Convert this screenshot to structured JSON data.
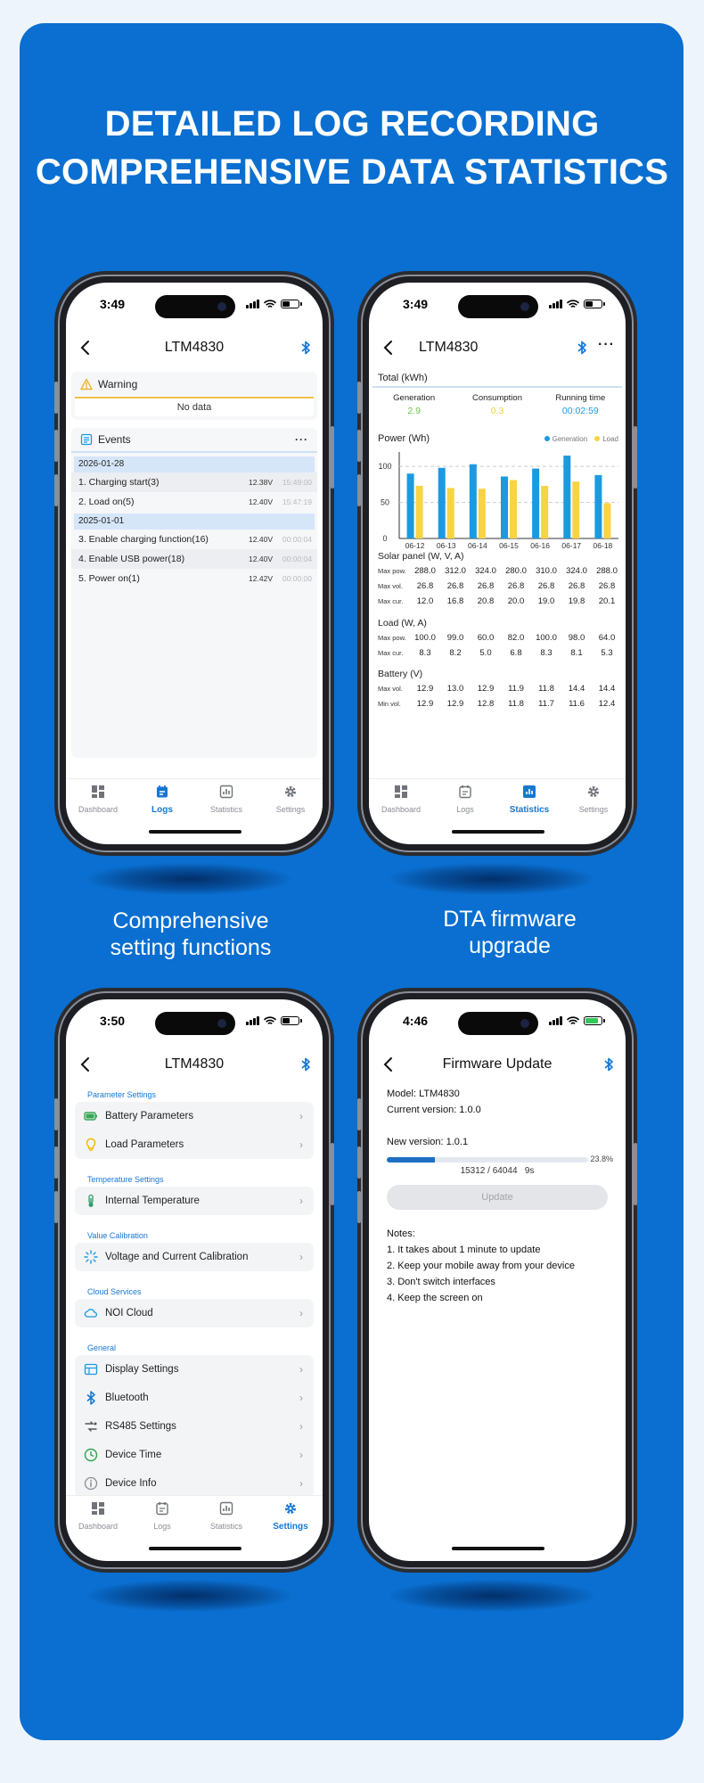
{
  "headline": {
    "line1": "DETAILED LOG RECORDING",
    "line2": "COMPREHENSIVE DATA STATISTICS"
  },
  "captions": {
    "settings": "Comprehensive\nsetting functions",
    "firmware": "DTA firmware\nupgrade"
  },
  "colors": {
    "background": "#0a6fd0",
    "accent": "#1677d3",
    "generation": "#1b9ae0",
    "load": "#f8d342"
  },
  "tabs": [
    "Dashboard",
    "Logs",
    "Statistics",
    "Settings"
  ],
  "logs": {
    "time": "3:49",
    "title": "LTM4830",
    "warning_label": "Warning",
    "no_data": "No data",
    "events_label": "Events",
    "groups": [
      {
        "date": "2026-01-28",
        "events": [
          {
            "name": "1. Charging start(3)",
            "voltage": "12.38V",
            "time": "15:49:00"
          },
          {
            "name": "2. Load on(5)",
            "voltage": "12.40V",
            "time": "15:47:19"
          }
        ]
      },
      {
        "date": "2025-01-01",
        "events": [
          {
            "name": "3. Enable charging function(16)",
            "voltage": "12.40V",
            "time": "00:00:04"
          },
          {
            "name": "4. Enable USB power(18)",
            "voltage": "12.40V",
            "time": "00:00:04"
          },
          {
            "name": "5. Power on(1)",
            "voltage": "12.42V",
            "time": "00:00:00"
          }
        ]
      }
    ]
  },
  "stats": {
    "time": "3:49",
    "title": "LTM4830",
    "more": "···",
    "total_label": "Total (kWh)",
    "generation_label": "Generation",
    "generation_value": "2.9",
    "consumption_label": "Consumption",
    "consumption_value": "0.3",
    "running_label": "Running time",
    "running_value": "00:02:59",
    "power_label": "Power (Wh)",
    "solar": {
      "title": "Solar panel (W, V, A)",
      "rows": [
        {
          "label": "Max pow.",
          "values": [
            "288.0",
            "312.0",
            "324.0",
            "280.0",
            "310.0",
            "324.0",
            "288.0"
          ]
        },
        {
          "label": "Max vol.",
          "values": [
            "26.8",
            "26.8",
            "26.8",
            "26.8",
            "26.8",
            "26.8",
            "26.8"
          ]
        },
        {
          "label": "Max cur.",
          "values": [
            "12.0",
            "16.8",
            "20.8",
            "20.0",
            "19.0",
            "19.8",
            "20.1"
          ]
        }
      ]
    },
    "load": {
      "title": "Load (W, A)",
      "rows": [
        {
          "label": "Max pow.",
          "values": [
            "100.0",
            "99.0",
            "60.0",
            "82.0",
            "100.0",
            "98.0",
            "64.0"
          ]
        },
        {
          "label": "Max cur.",
          "values": [
            "8.3",
            "8.2",
            "5.0",
            "6.8",
            "8.3",
            "8.1",
            "5.3"
          ]
        }
      ]
    },
    "battery": {
      "title": "Battery (V)",
      "rows": [
        {
          "label": "Max vol.",
          "values": [
            "12.9",
            "13.0",
            "12.9",
            "11.9",
            "11.8",
            "14.4",
            "14.4"
          ]
        },
        {
          "label": "Min vol.",
          "values": [
            "12.9",
            "12.9",
            "12.8",
            "11.8",
            "11.7",
            "11.6",
            "12.4"
          ]
        }
      ]
    }
  },
  "chart_data": {
    "type": "bar",
    "title": "Power (Wh)",
    "categories": [
      "06-12",
      "06-13",
      "06-14",
      "06-15",
      "06-16",
      "06-17",
      "06-18"
    ],
    "series": [
      {
        "name": "Generation",
        "values": [
          90,
          98,
          103,
          86,
          97,
          115,
          88
        ]
      },
      {
        "name": "Load",
        "values": [
          73,
          70,
          69,
          81,
          73,
          79,
          49
        ]
      }
    ],
    "ylim": [
      0,
      120
    ],
    "yticks": [
      0,
      50,
      100
    ],
    "grid": true,
    "legend": "top-right"
  },
  "settings": {
    "time": "3:50",
    "title": "LTM4830",
    "groups": [
      {
        "title": "Parameter Settings",
        "items": [
          {
            "label": "Battery Parameters",
            "icon": "battery-icon"
          },
          {
            "label": "Load Parameters",
            "icon": "bulb-icon"
          }
        ]
      },
      {
        "title": "Temperature Settings",
        "items": [
          {
            "label": "Internal Temperature",
            "icon": "thermometer-icon"
          }
        ]
      },
      {
        "title": "Value Calibration",
        "items": [
          {
            "label": "Voltage and Current Calibration",
            "icon": "calibration-icon"
          }
        ]
      },
      {
        "title": "Cloud Services",
        "items": [
          {
            "label": "NOI Cloud",
            "icon": "cloud-icon"
          }
        ]
      },
      {
        "title": "General",
        "items": [
          {
            "label": "Display Settings",
            "icon": "display-icon"
          },
          {
            "label": "Bluetooth",
            "icon": "bluetooth-icon"
          },
          {
            "label": "RS485 Settings",
            "icon": "rs485-icon"
          },
          {
            "label": "Device Time",
            "icon": "clock-icon"
          },
          {
            "label": "Device Info",
            "icon": "info-icon"
          }
        ]
      }
    ]
  },
  "firmware": {
    "time": "4:46",
    "title": "Firmware Update",
    "model": "Model: LTM4830",
    "current_version": "Current version: 1.0.0",
    "new_version": "New version: 1.0.1",
    "progress_percent": 23.8,
    "progress_label": "23.8%",
    "bytes": "15312 / 64044",
    "eta": "9s",
    "update_button": "Update",
    "notes_title": "Notes:",
    "notes": [
      "1. It takes about 1 minute to update",
      "2. Keep your mobile away from your device",
      "3. Don't switch interfaces",
      "4. Keep the screen on"
    ]
  }
}
